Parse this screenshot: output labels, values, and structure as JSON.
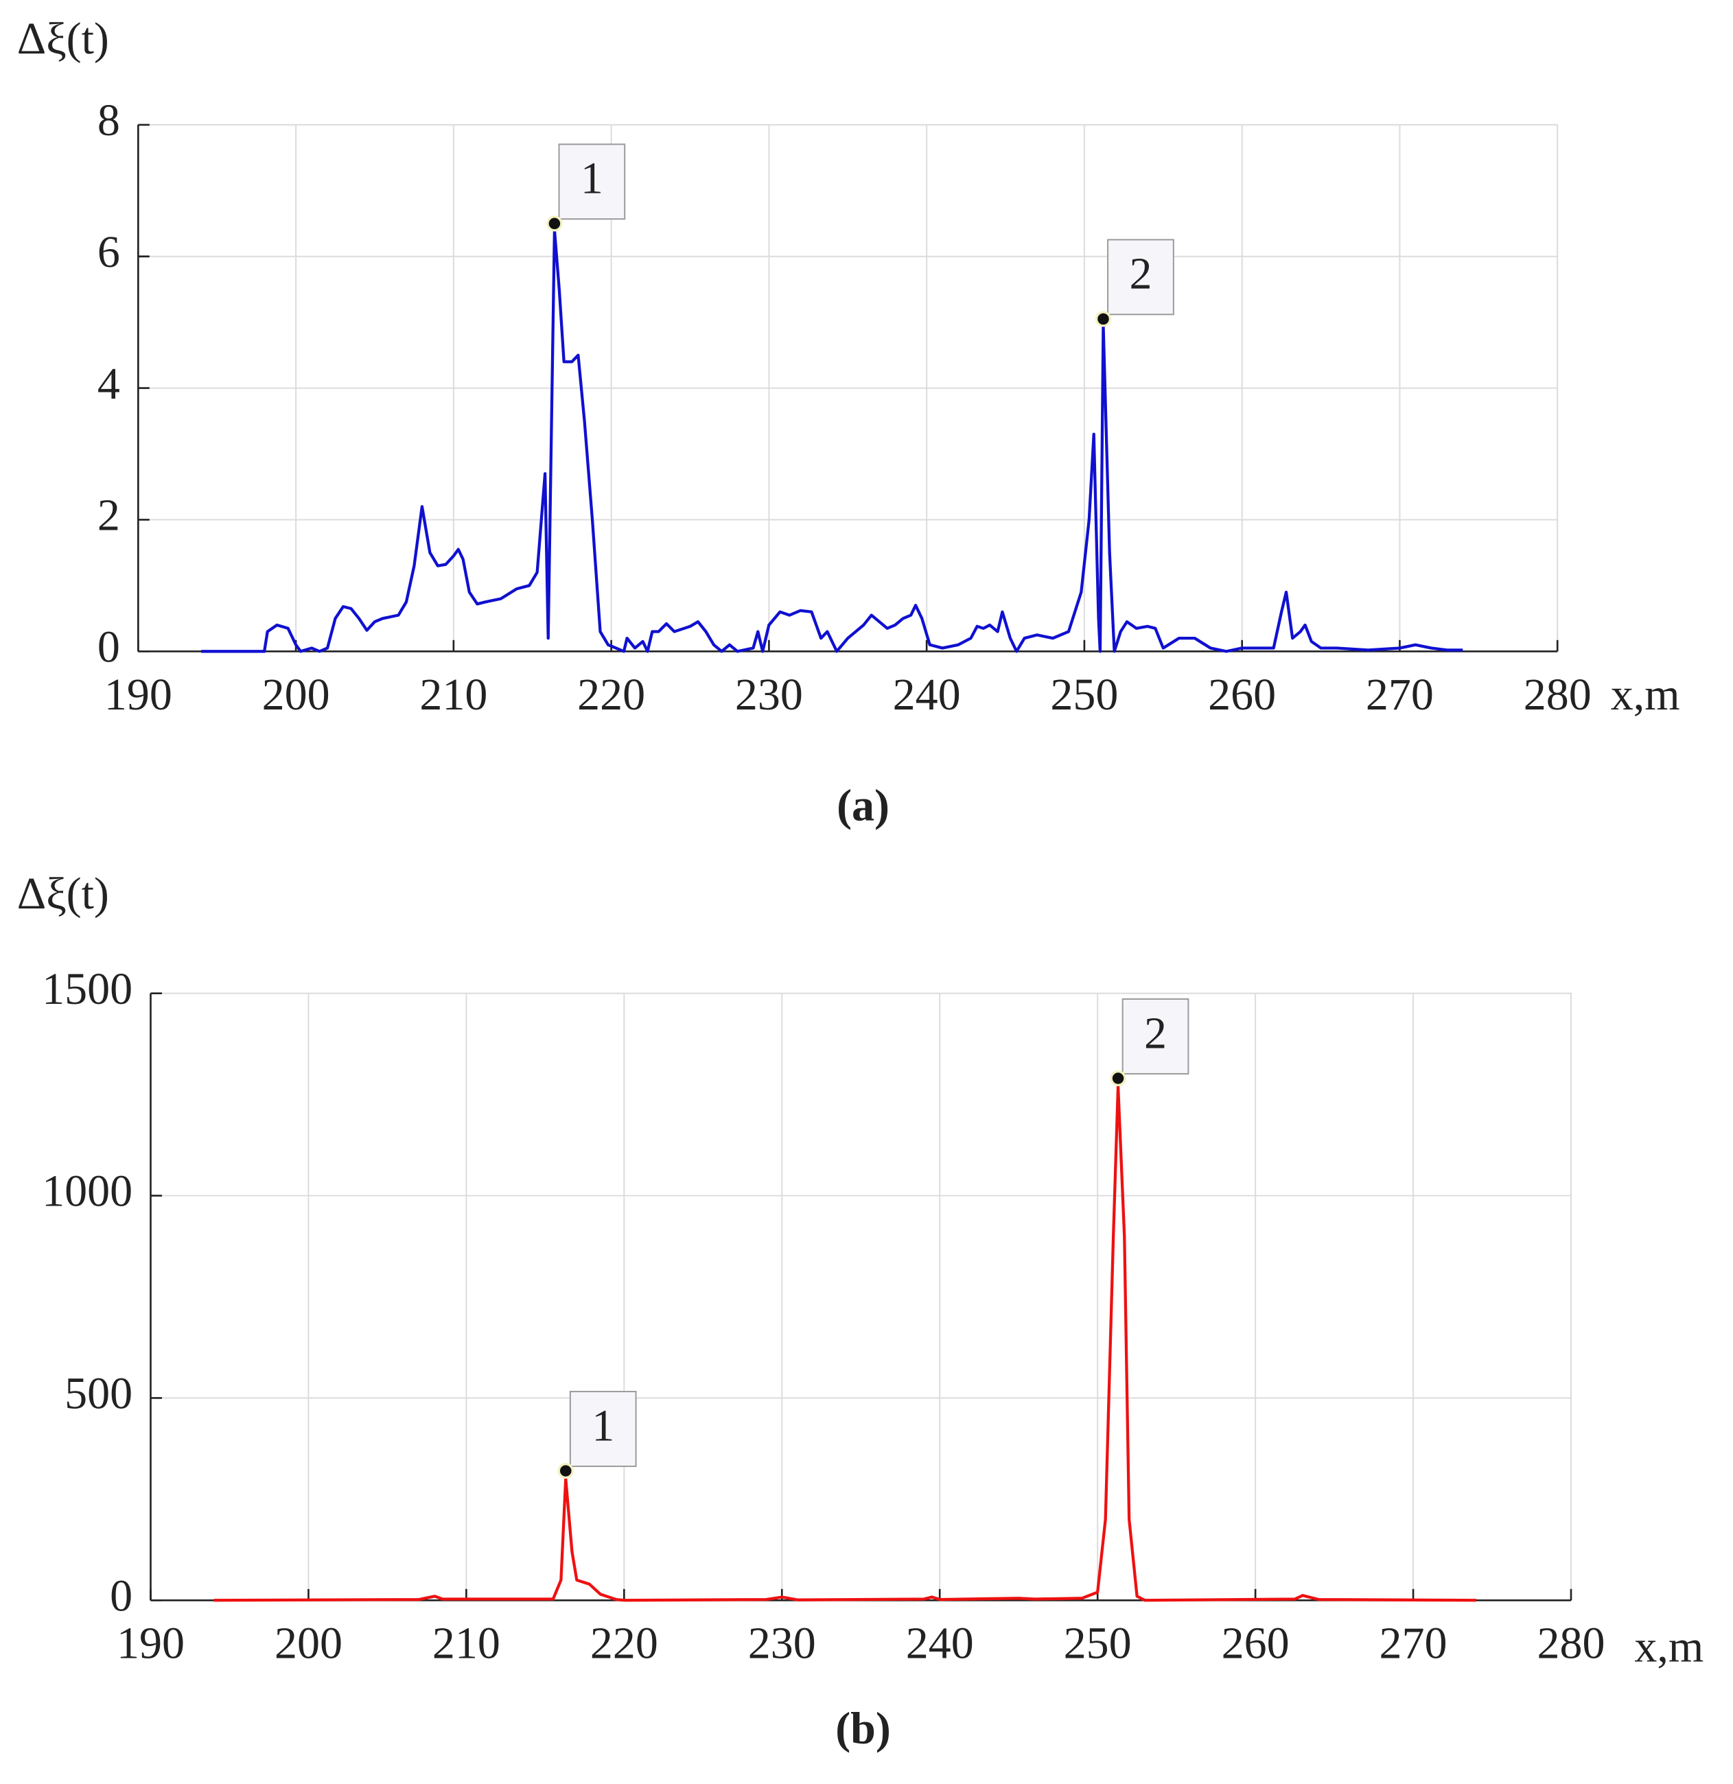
{
  "chart_data": [
    {
      "type": "line",
      "caption": "(a)",
      "y_label": "Δξ(t)",
      "x_label": "x,m",
      "xlim": [
        190,
        280
      ],
      "xticks": [
        190,
        200,
        210,
        220,
        230,
        240,
        250,
        260,
        270,
        280
      ],
      "ylim": [
        0,
        8
      ],
      "yticks": [
        0,
        2,
        4,
        6,
        8
      ],
      "grid": true,
      "series": [
        {
          "color": "#1010d0",
          "x": [
            194,
            198,
            198.2,
            198.8,
            199.5,
            200,
            200.3,
            201,
            201.5,
            202,
            202.5,
            203,
            203.5,
            204,
            204.5,
            205,
            205.5,
            206.5,
            207,
            207.5,
            208,
            208.5,
            209,
            209.5,
            210,
            210.3,
            210.6,
            211,
            211.5,
            212,
            213,
            214,
            214.8,
            215.3,
            215.8,
            216,
            216.4,
            216.7,
            217,
            217.5,
            217.9,
            218.3,
            218.8,
            219.3,
            219.8,
            220.3,
            220.8,
            221,
            221.5,
            222,
            222.3,
            222.6,
            223,
            223.5,
            224,
            225,
            225.5,
            226,
            226.5,
            227,
            227.5,
            228,
            229,
            229.3,
            229.6,
            230,
            230.7,
            231.3,
            232,
            232.7,
            233.3,
            233.7,
            234.3,
            235,
            236,
            236.5,
            237,
            237.5,
            238,
            238.5,
            239,
            239.3,
            239.7,
            240.2,
            241,
            242,
            242.8,
            243.2,
            243.6,
            244,
            244.5,
            244.8,
            245.3,
            245.7,
            246.2,
            247,
            248,
            249,
            249.8,
            250.3,
            250.6,
            250.9,
            251,
            251.2,
            251.6,
            251.9,
            252.3,
            252.7,
            253.3,
            254,
            254.5,
            255,
            256,
            257,
            258,
            259,
            260,
            262,
            262.5,
            262.8,
            263.2,
            263.7,
            264,
            264.4,
            265,
            266,
            268,
            270,
            271,
            272,
            273,
            274
          ],
          "values": [
            0,
            0,
            0.3,
            0.4,
            0.35,
            0.1,
            0,
            0.05,
            0,
            0.05,
            0.5,
            0.68,
            0.65,
            0.5,
            0.32,
            0.45,
            0.5,
            0.55,
            0.75,
            1.3,
            2.2,
            1.5,
            1.3,
            1.32,
            1.45,
            1.55,
            1.4,
            0.9,
            0.72,
            0.75,
            0.8,
            0.95,
            1.0,
            1.2,
            2.7,
            0.2,
            6.4,
            5.5,
            4.4,
            4.4,
            4.5,
            3.5,
            2.0,
            0.3,
            0.1,
            0.05,
            0,
            0.2,
            0.05,
            0.15,
            0,
            0.3,
            0.3,
            0.42,
            0.3,
            0.38,
            0.45,
            0.3,
            0.1,
            0,
            0.1,
            0,
            0.05,
            0.3,
            0,
            0.4,
            0.6,
            0.55,
            0.62,
            0.6,
            0.2,
            0.3,
            0,
            0.2,
            0.4,
            0.55,
            0.45,
            0.35,
            0.4,
            0.5,
            0.55,
            0.7,
            0.5,
            0.1,
            0.05,
            0.1,
            0.2,
            0.38,
            0.35,
            0.4,
            0.3,
            0.6,
            0.2,
            0,
            0.2,
            0.25,
            0.2,
            0.3,
            0.9,
            2.0,
            3.3,
            0.5,
            0,
            4.95,
            1.5,
            0,
            0.3,
            0.45,
            0.35,
            0.38,
            0.35,
            0.05,
            0.2,
            0.2,
            0.05,
            0,
            0.05,
            0.05,
            0.6,
            0.9,
            0.2,
            0.3,
            0.4,
            0.15,
            0.05,
            0.05,
            0.02,
            0.05,
            0.1,
            0.05,
            0.02,
            0.02
          ]
        }
      ],
      "annotations": [
        {
          "text": "1",
          "x": 216.4,
          "y": 6.5
        },
        {
          "text": "2",
          "x": 251.2,
          "y": 5.05
        }
      ]
    },
    {
      "type": "line",
      "caption": "(b)",
      "y_label": "Δξ(t)",
      "x_label": "x,m",
      "xlim": [
        190,
        280
      ],
      "xticks": [
        190,
        200,
        210,
        220,
        230,
        240,
        250,
        260,
        270,
        280
      ],
      "ylim": [
        0,
        1500
      ],
      "yticks": [
        0,
        500,
        1000,
        1500
      ],
      "grid": true,
      "series": [
        {
          "color": "#ee1111",
          "x": [
            194,
            207,
            208,
            208.5,
            215.5,
            216,
            216.3,
            216.7,
            217,
            217.8,
            218.5,
            219.5,
            220,
            229,
            230,
            231,
            239,
            239.5,
            240,
            245,
            246,
            249,
            250,
            250.5,
            251,
            251.3,
            251.7,
            252,
            252.5,
            253,
            262.5,
            263,
            264,
            274
          ],
          "values": [
            0,
            2,
            10,
            3,
            3,
            50,
            300,
            120,
            50,
            40,
            15,
            2,
            0,
            2,
            8,
            1,
            3,
            8,
            2,
            5,
            3,
            5,
            20,
            200,
            900,
            1270,
            900,
            200,
            10,
            0,
            3,
            12,
            2,
            0
          ]
        }
      ],
      "annotations": [
        {
          "text": "1",
          "x": 216.3,
          "y": 320
        },
        {
          "text": "2",
          "x": 251.3,
          "y": 1290
        }
      ]
    }
  ]
}
